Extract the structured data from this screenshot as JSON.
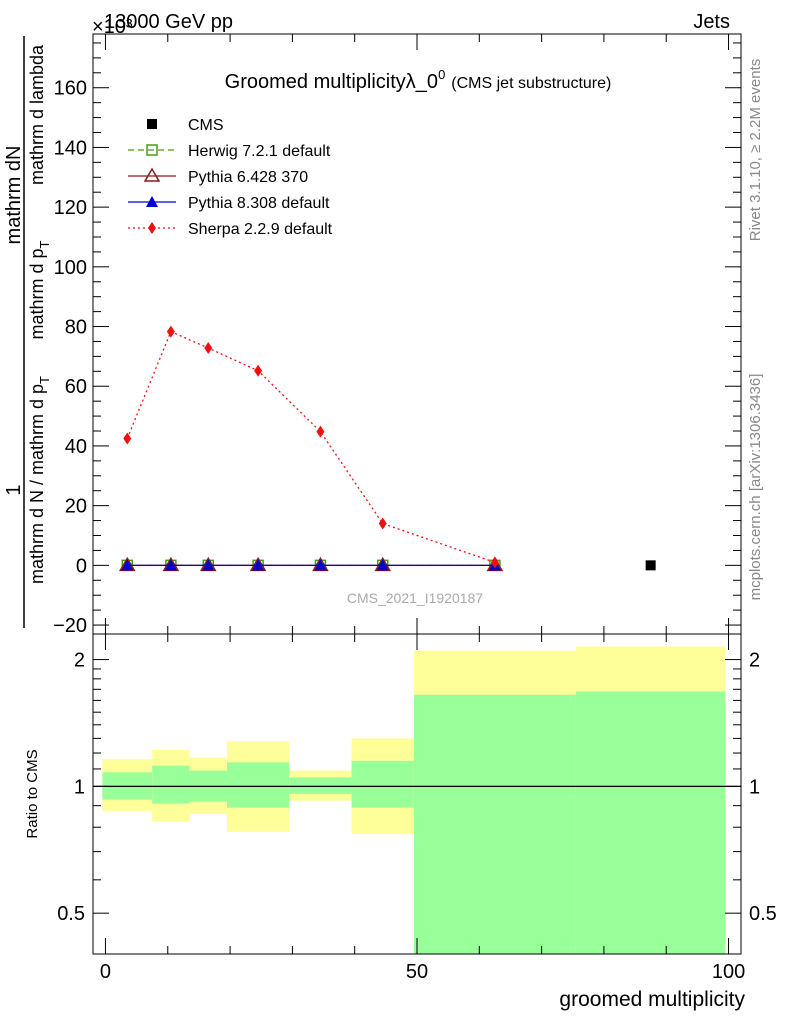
{
  "header": {
    "left": "13000 GeV pp",
    "right": "Jets",
    "exponent": "×10³"
  },
  "side_labels": {
    "rivet": "Rivet 3.1.10, ≥ 2.2M events",
    "mcplots": "mcplots.cern.ch [arXiv:1306.3436]"
  },
  "watermark": "CMS_2021_I1920187",
  "colors": {
    "herwig": "#4a9a1a",
    "pythia6": "#8b1a1a",
    "pythia8": "#0000cc",
    "sherpa": "#ee1111",
    "cms": "#000000",
    "band_outer": "#ffff99",
    "band_inner": "#99ff99"
  },
  "chart_data": [
    {
      "type": "line",
      "title": "Groomed multiplicityλ_0",
      "title_sup": "0",
      "title_suffix": "(CMS jet substructure)",
      "ylabel_num": "1",
      "ylabel_den1": "mathrm dN",
      "ylabel_den2": "mathrm d N / mathrm d p",
      "ylabel_sub": "T",
      "ylabel_den3": "mathrm d p",
      "ylabel_den4": "mathrm d lambda",
      "ylabel_line1": "mathrm d N / mathrm d p",
      "ylabel_line2": "mathrm d p",
      "ylabel_line3": "mathrm d lambda",
      "ylim": [
        -23,
        178
      ],
      "yticks": [
        -20,
        0,
        20,
        40,
        60,
        80,
        100,
        120,
        140,
        160
      ],
      "ytick_labels": [
        "−20",
        "0",
        "20",
        "40",
        "60",
        "80",
        "100",
        "120",
        "140",
        "160"
      ],
      "xlim": [
        -2,
        102
      ],
      "legend_position": "top-left",
      "series": [
        {
          "name": "CMS",
          "marker": "square-filled",
          "line": "none",
          "x": [
            87.5
          ],
          "y": [
            0
          ]
        },
        {
          "name": "Herwig 7.2.1 default",
          "marker": "square-open",
          "line": "dashed",
          "x": [
            3.5,
            10.5,
            16.5,
            24.5,
            34.5,
            44.5,
            62.5
          ],
          "y": [
            0,
            0,
            0,
            0,
            0,
            0,
            0
          ]
        },
        {
          "name": "Pythia 6.428 370",
          "marker": "triangle-open",
          "line": "solid",
          "x": [
            3.5,
            10.5,
            16.5,
            24.5,
            34.5,
            44.5,
            62.5
          ],
          "y": [
            0,
            0,
            0,
            0,
            0,
            0,
            0
          ]
        },
        {
          "name": "Pythia 8.308 default",
          "marker": "triangle-filled",
          "line": "solid",
          "x": [
            3.5,
            10.5,
            16.5,
            24.5,
            34.5,
            44.5,
            62.5
          ],
          "y": [
            0,
            0,
            0,
            0,
            0,
            0,
            0
          ]
        },
        {
          "name": "Sherpa 2.2.9 default",
          "marker": "diamond-filled",
          "line": "dotted",
          "x": [
            3.5,
            10.5,
            16.5,
            24.5,
            34.5,
            44.5,
            62.5
          ],
          "y": [
            42.5,
            78.3,
            72.8,
            65.2,
            44.8,
            14.0,
            1.0
          ]
        }
      ]
    },
    {
      "type": "area",
      "ylabel": "Ratio to CMS",
      "xlabel": "groomed multiplicity",
      "scale": "log",
      "ylim": [
        0.4,
        2.3
      ],
      "yticks": [
        0.5,
        1,
        2
      ],
      "ytick_labels": [
        "0.5",
        "1",
        "2"
      ],
      "xlim": [
        -2,
        102
      ],
      "xticks": [
        0,
        50,
        100
      ],
      "xtick_labels": [
        "0",
        "50",
        "100"
      ],
      "reference": 1,
      "bands": [
        {
          "x0": -0.5,
          "x1": 7.5,
          "outer": [
            0.875,
            1.16
          ],
          "inner": [
            0.93,
            1.08
          ]
        },
        {
          "x0": 7.5,
          "x1": 13.5,
          "outer": [
            0.825,
            1.22
          ],
          "inner": [
            0.91,
            1.12
          ]
        },
        {
          "x0": 13.5,
          "x1": 19.5,
          "outer": [
            0.86,
            1.17
          ],
          "inner": [
            0.92,
            1.09
          ]
        },
        {
          "x0": 19.5,
          "x1": 29.5,
          "outer": [
            0.78,
            1.28
          ],
          "inner": [
            0.89,
            1.14
          ]
        },
        {
          "x0": 29.5,
          "x1": 39.5,
          "outer": [
            0.925,
            1.09
          ],
          "inner": [
            0.96,
            1.05
          ]
        },
        {
          "x0": 39.5,
          "x1": 49.5,
          "outer": [
            0.77,
            1.3
          ],
          "inner": [
            0.89,
            1.15
          ]
        },
        {
          "x0": 49.5,
          "x1": 75.5,
          "outer": [
            0.39,
            2.1
          ],
          "inner": [
            0.39,
            1.65
          ]
        },
        {
          "x0": 75.5,
          "x1": 99.5,
          "outer": [
            0.39,
            2.15
          ],
          "inner": [
            0.39,
            1.68
          ]
        }
      ]
    }
  ]
}
